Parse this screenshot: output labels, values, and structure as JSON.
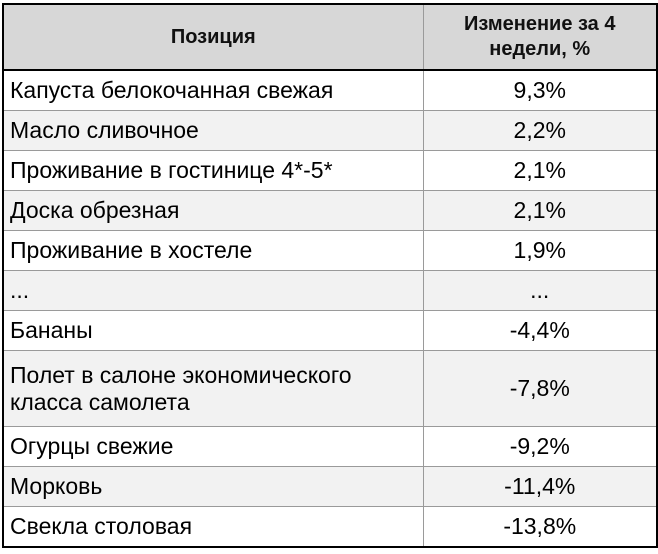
{
  "table": {
    "headers": [
      "Позиция",
      "Изменение за 4 недели, %"
    ],
    "rows": [
      {
        "name": "Капуста белокочанная свежая",
        "value": "9,3%"
      },
      {
        "name": "Масло сливочное",
        "value": "2,2%"
      },
      {
        "name": "Проживание в гостинице 4*-5*",
        "value": "2,1%"
      },
      {
        "name": "Доска обрезная",
        "value": "2,1%"
      },
      {
        "name": "Проживание в хостеле",
        "value": "1,9%"
      },
      {
        "name": "...",
        "value": "..."
      },
      {
        "name": "Бананы",
        "value": "-4,4%"
      },
      {
        "name": "Полет в салоне экономического класса самолета",
        "value": "-7,8%"
      },
      {
        "name": "Огурцы свежие",
        "value": "-9,2%"
      },
      {
        "name": "Морковь",
        "value": "-11,4%"
      },
      {
        "name": "Свекла столовая",
        "value": "-13,8%"
      }
    ]
  },
  "colors": {
    "header_bg": "#d7d7d7",
    "stripe_bg": "#f2f2f2",
    "border": "#000000"
  }
}
